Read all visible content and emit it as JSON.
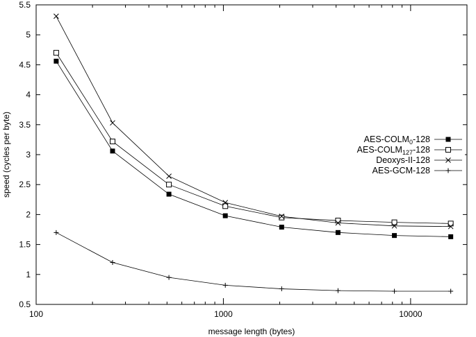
{
  "chart_data": {
    "type": "line",
    "xlabel": "message length (bytes)",
    "ylabel": "speed (cycles per byte)",
    "xscale": "log",
    "xlim": [
      100,
      20000
    ],
    "ylim": [
      0.5,
      5.5
    ],
    "xticks": [
      {
        "value": 100,
        "label": "100"
      },
      {
        "value": 1000,
        "label": "1000"
      },
      {
        "value": 10000,
        "label": "10000"
      }
    ],
    "yticks": [
      {
        "value": 0.5,
        "label": "0.5"
      },
      {
        "value": 1,
        "label": "1"
      },
      {
        "value": 1.5,
        "label": "1.5"
      },
      {
        "value": 2,
        "label": "2"
      },
      {
        "value": 2.5,
        "label": "2.5"
      },
      {
        "value": 3,
        "label": "3"
      },
      {
        "value": 3.5,
        "label": "3.5"
      },
      {
        "value": 4,
        "label": "4"
      },
      {
        "value": 4.5,
        "label": "4.5"
      },
      {
        "value": 5,
        "label": "5"
      },
      {
        "value": 5.5,
        "label": "5.5"
      }
    ],
    "grid": false,
    "legend_position": "right",
    "x": [
      128,
      256,
      512,
      1024,
      2048,
      4096,
      8192,
      16384
    ],
    "series": [
      {
        "name": "AES-COLM0-128",
        "label_main": "AES-COLM",
        "label_sub": "0",
        "label_suffix": "-128",
        "marker": "filled-square",
        "values": [
          4.56,
          3.06,
          2.34,
          1.98,
          1.79,
          1.7,
          1.65,
          1.63
        ]
      },
      {
        "name": "AES-COLM127-128",
        "label_main": "AES-COLM",
        "label_sub": "127",
        "label_suffix": "-128",
        "marker": "open-square",
        "values": [
          4.7,
          3.22,
          2.5,
          2.14,
          1.95,
          1.9,
          1.87,
          1.85
        ]
      },
      {
        "name": "Deoxys-II-128",
        "label_main": "Deoxys-II-128",
        "label_sub": "",
        "label_suffix": "",
        "marker": "x",
        "values": [
          5.31,
          3.53,
          2.64,
          2.2,
          1.97,
          1.86,
          1.81,
          1.8
        ]
      },
      {
        "name": "AES-GCM-128",
        "label_main": "AES-GCM-128",
        "label_sub": "",
        "label_suffix": "",
        "marker": "plus",
        "values": [
          1.7,
          1.2,
          0.95,
          0.82,
          0.76,
          0.73,
          0.72,
          0.72
        ]
      }
    ]
  }
}
